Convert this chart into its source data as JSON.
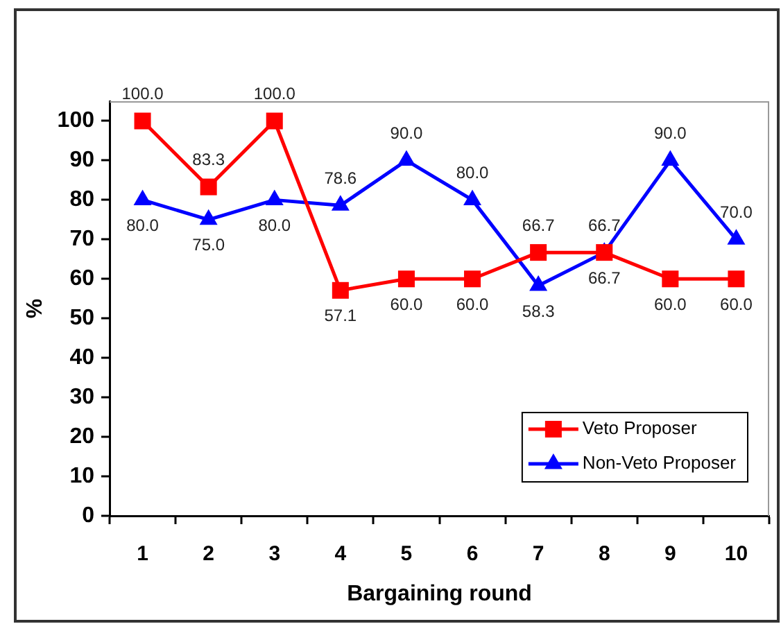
{
  "chart_data": {
    "type": "line",
    "xlabel": "Bargaining round",
    "ylabel": "%",
    "categories": [
      "1",
      "2",
      "3",
      "4",
      "5",
      "6",
      "7",
      "8",
      "9",
      "10"
    ],
    "series": [
      {
        "name": "Veto Proposer",
        "color": "#ff0000",
        "marker": "square",
        "values": [
          100.0,
          83.3,
          100.0,
          57.1,
          60.0,
          60.0,
          66.7,
          66.7,
          60.0,
          60.0
        ],
        "value_labels": [
          "100.0",
          "83.3",
          "100.0",
          "57.1",
          "60.0",
          "60.0",
          "66.7",
          "66.7",
          "60.0",
          "60.0"
        ]
      },
      {
        "name": "Non-Veto Proposer",
        "color": "#0000ff",
        "marker": "triangle",
        "values": [
          80.0,
          75.0,
          80.0,
          78.6,
          90.0,
          80.0,
          58.3,
          66.7,
          90.0,
          70.0
        ],
        "value_labels": [
          "80.0",
          "75.0",
          "80.0",
          "78.6",
          "90.0",
          "80.0",
          "58.3",
          "66.7",
          "90.0",
          "70.0"
        ]
      }
    ],
    "ylim": [
      0,
      105
    ],
    "yticks": [
      0,
      10,
      20,
      30,
      40,
      50,
      60,
      70,
      80,
      90,
      100
    ],
    "grid": false,
    "legend": "bottom right"
  }
}
